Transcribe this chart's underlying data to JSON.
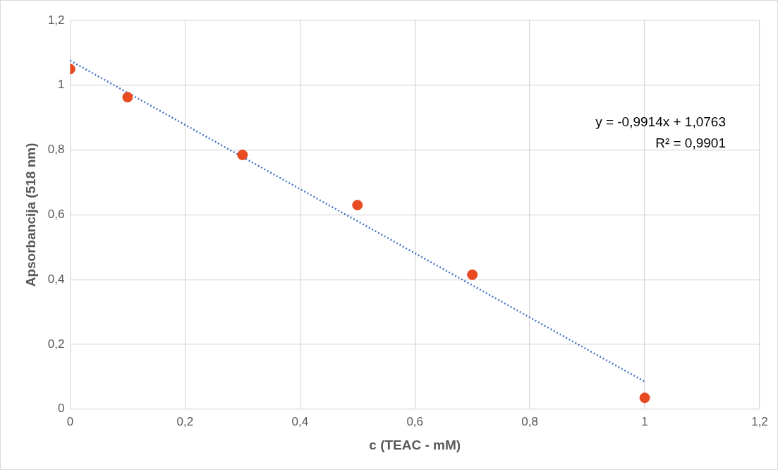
{
  "chart_data": {
    "type": "scatter",
    "xlabel": "c (TEAC - mM)",
    "ylabel": "Apsorbancija (518 nm)",
    "xlim": [
      0,
      1.2
    ],
    "ylim": [
      0,
      1.2
    ],
    "xticks": [
      0,
      {
        "value": 0.2,
        "label": "0,2"
      },
      {
        "value": 0.4,
        "label": "0,4"
      },
      {
        "value": 0.6,
        "label": "0,6"
      },
      {
        "value": 0.8,
        "label": "0,8"
      },
      1,
      {
        "value": 1.2,
        "label": "1,2"
      }
    ],
    "yticks": [
      0,
      {
        "value": 0.2,
        "label": "0,2"
      },
      {
        "value": 0.4,
        "label": "0,4"
      },
      {
        "value": 0.6,
        "label": "0,6"
      },
      {
        "value": 0.8,
        "label": "0,8"
      },
      1,
      {
        "value": 1.2,
        "label": "1,2"
      }
    ],
    "grid": true,
    "annotations": [
      "y = -0,9914x + 1,0763",
      "R² = 0,9901"
    ],
    "series": [
      {
        "type": "scatter",
        "x": [
          0,
          0.1,
          0.3,
          0.5,
          0.7,
          1
        ],
        "values": [
          1.05,
          0.963,
          0.785,
          0.63,
          0.415,
          0.035
        ],
        "color": "#e84a22",
        "marker": "circle"
      },
      {
        "type": "line",
        "x": [
          0,
          1
        ],
        "values": [
          1.076,
          0.085
        ],
        "color": "#4472c4",
        "line_style": "dotted",
        "marker": "none"
      }
    ]
  }
}
